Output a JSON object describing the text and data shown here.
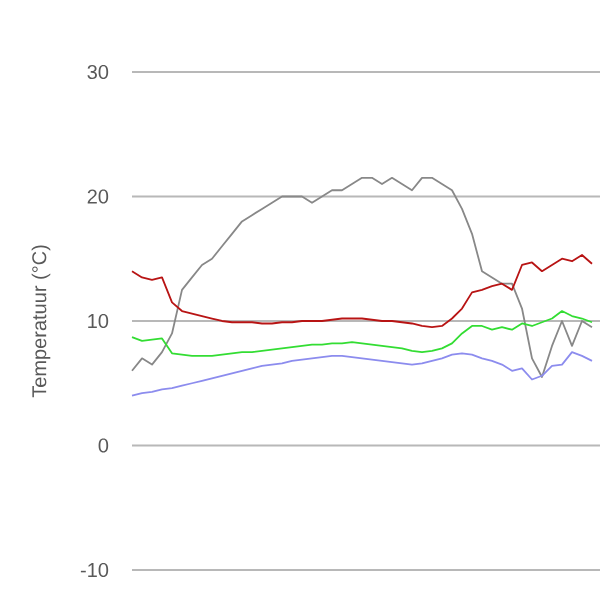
{
  "chart_data": {
    "type": "line",
    "ylabel": "Temperatuur (°C)",
    "categories": [
      null,
      null,
      null,
      null,
      null,
      null,
      null,
      null,
      null,
      null,
      null,
      null,
      null,
      null,
      null,
      null,
      null,
      null,
      null,
      null,
      null,
      null,
      null,
      null,
      null,
      null,
      null,
      null,
      null,
      null,
      null,
      null,
      null,
      null,
      null,
      null,
      null,
      null,
      null,
      null,
      null,
      null,
      null,
      null,
      null,
      null,
      null
    ],
    "series": [
      {
        "color": "#888888",
        "values": [
          6,
          7,
          6.5,
          7.5,
          9,
          12.5,
          13.5,
          14.5,
          15,
          16,
          17,
          18,
          18.5,
          19,
          19.5,
          20,
          20,
          20,
          19.5,
          20,
          20.5,
          20.5,
          21,
          21.5,
          21.5,
          21,
          21.5,
          21,
          20.5,
          21.5,
          21.5,
          21,
          20.5,
          19,
          17,
          14,
          13.5,
          13,
          13,
          11,
          7,
          5.5,
          8,
          10,
          8,
          10,
          9.5
        ]
      },
      {
        "color": "#b81414",
        "values": [
          14,
          13.5,
          13.3,
          13.5,
          11.5,
          10.8,
          10.6,
          10.4,
          10.2,
          10,
          9.9,
          9.9,
          9.9,
          9.8,
          9.8,
          9.9,
          9.9,
          10,
          10,
          10,
          10.1,
          10.2,
          10.2,
          10.2,
          10.1,
          10,
          10,
          9.9,
          9.8,
          9.6,
          9.5,
          9.6,
          10.2,
          11,
          12.3,
          12.5,
          12.8,
          13,
          12.5,
          14.5,
          14.7,
          14,
          14.5,
          15,
          14.8,
          15.3,
          14.6
        ]
      },
      {
        "color": "#33dd33",
        "values": [
          8.7,
          8.4,
          8.5,
          8.6,
          7.4,
          7.3,
          7.2,
          7.2,
          7.2,
          7.3,
          7.4,
          7.5,
          7.5,
          7.6,
          7.7,
          7.8,
          7.9,
          8,
          8.1,
          8.1,
          8.2,
          8.2,
          8.3,
          8.2,
          8.1,
          8,
          7.9,
          7.8,
          7.6,
          7.5,
          7.6,
          7.8,
          8.2,
          9,
          9.6,
          9.6,
          9.3,
          9.5,
          9.3,
          9.8,
          9.6,
          9.9,
          10.2,
          10.8,
          10.4,
          10.2,
          9.9
        ]
      },
      {
        "color": "#8c8cee",
        "values": [
          4,
          4.2,
          4.3,
          4.5,
          4.6,
          4.8,
          5,
          5.2,
          5.4,
          5.6,
          5.8,
          6,
          6.2,
          6.4,
          6.5,
          6.6,
          6.8,
          6.9,
          7,
          7.1,
          7.2,
          7.2,
          7.1,
          7,
          6.9,
          6.8,
          6.7,
          6.6,
          6.5,
          6.6,
          6.8,
          7,
          7.3,
          7.4,
          7.3,
          7,
          6.8,
          6.5,
          6,
          6.2,
          5.3,
          5.6,
          6.4,
          6.5,
          7.5,
          7.2,
          6.8
        ]
      }
    ],
    "ylim": [
      -10,
      30
    ],
    "yticks": [
      -10,
      0,
      10,
      20,
      30
    ],
    "grid": "y",
    "tick_labels": "y"
  }
}
